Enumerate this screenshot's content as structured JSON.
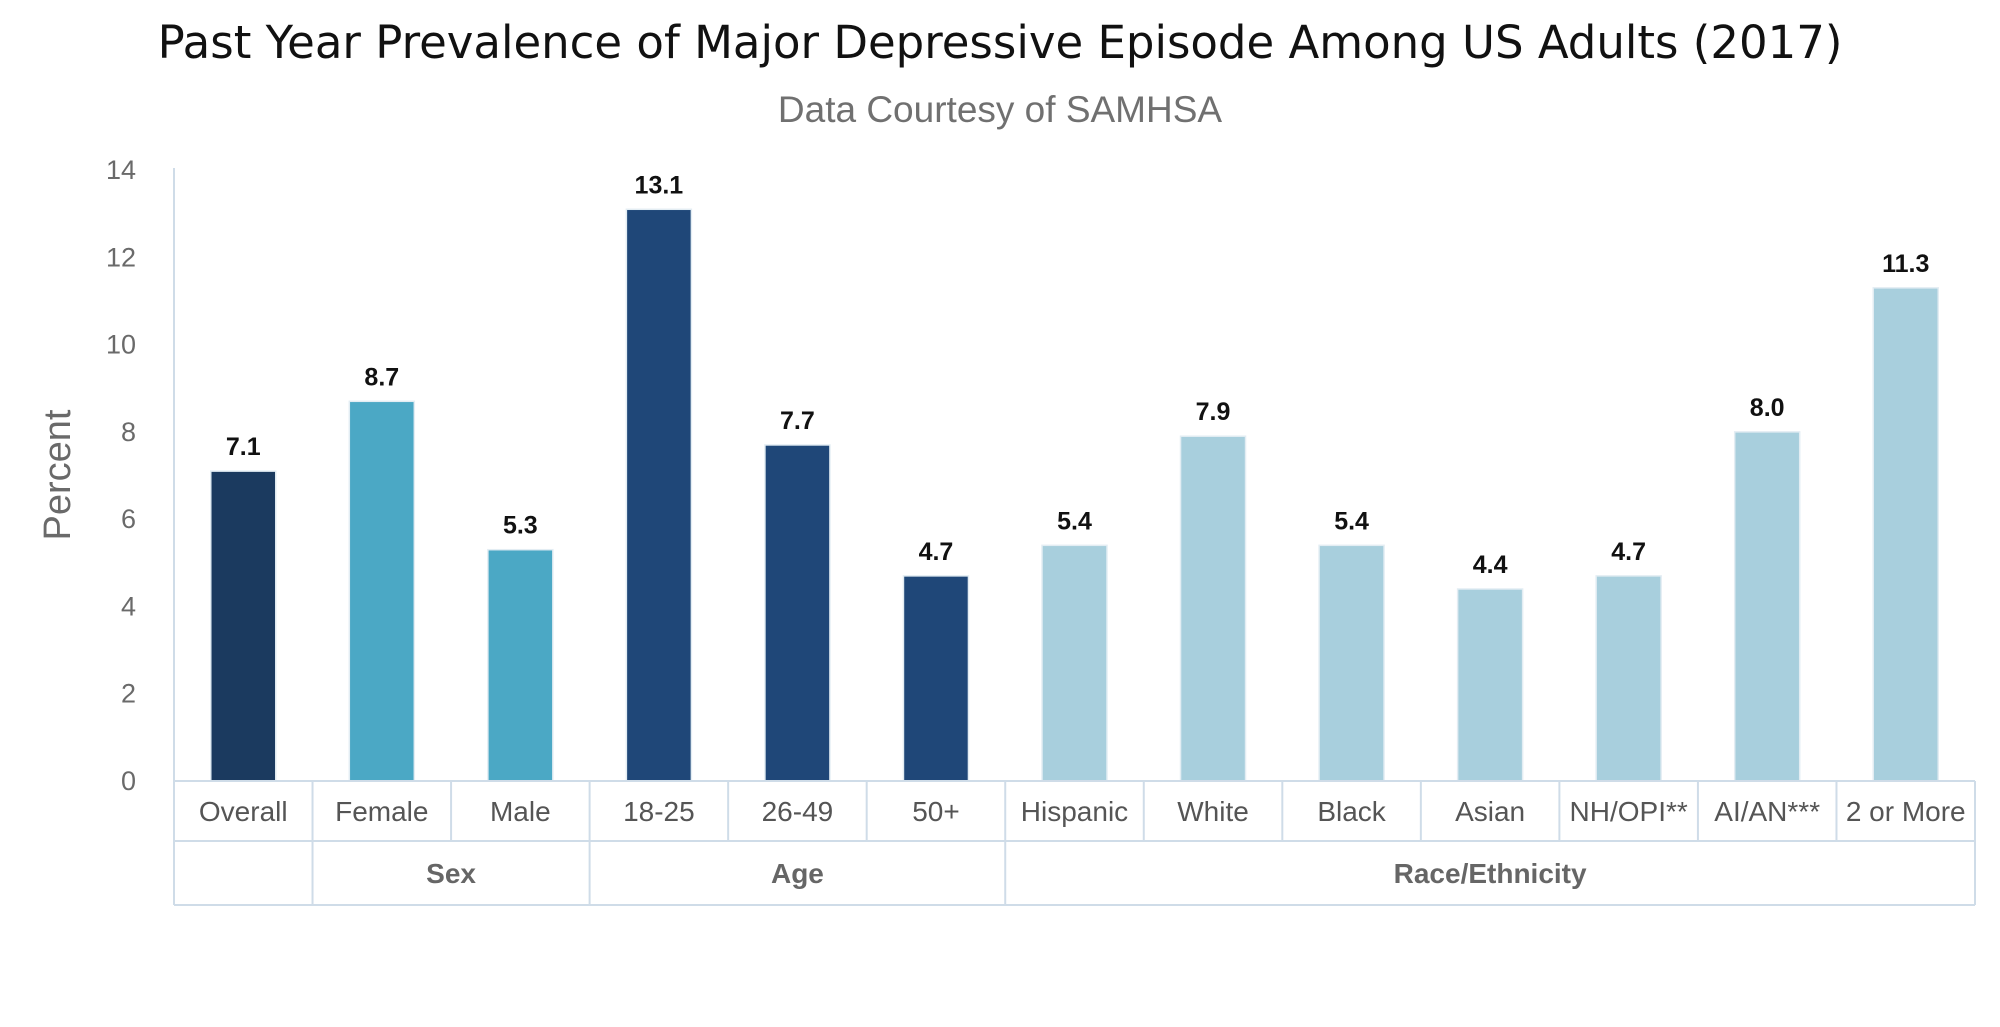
{
  "chart_data": {
    "type": "bar",
    "title": "Past Year Prevalence of Major Depressive Episode Among US Adults (2017)",
    "subtitle": "Data Courtesy of SAMHSA",
    "ylabel": "Percent",
    "xlabel": "",
    "ylim": [
      0,
      14
    ],
    "yticks": [
      0,
      2,
      4,
      6,
      8,
      10,
      12,
      14
    ],
    "categories": [
      "Overall",
      "Female",
      "Male",
      "18-25",
      "26-49",
      "50+",
      "Hispanic",
      "White",
      "Black",
      "Asian",
      "NH/OPI**",
      "AI/AN***",
      "2 or More"
    ],
    "values": [
      7.1,
      8.7,
      5.3,
      13.1,
      7.7,
      4.7,
      5.4,
      7.9,
      5.4,
      4.4,
      4.7,
      8.0,
      11.3
    ],
    "value_labels": [
      "7.1",
      "8.7",
      "5.3",
      "13.1",
      "7.7",
      "4.7",
      "5.4",
      "7.9",
      "5.4",
      "4.4",
      "4.7",
      "8.0",
      "11.3"
    ],
    "bar_colors": [
      "#1b3a5f",
      "#4ba8c5",
      "#4ba8c5",
      "#1f4778",
      "#1f4778",
      "#1f4778",
      "#a8cfdd",
      "#a8cfdd",
      "#a8cfdd",
      "#a8cfdd",
      "#a8cfdd",
      "#a8cfdd",
      "#a8cfdd"
    ],
    "groups": [
      {
        "label": "",
        "start": 0,
        "end": 0
      },
      {
        "label": "Sex",
        "start": 1,
        "end": 2
      },
      {
        "label": "Age",
        "start": 3,
        "end": 5
      },
      {
        "label": "Race/Ethnicity",
        "start": 6,
        "end": 12
      }
    ],
    "grid": false,
    "legend": "none"
  }
}
